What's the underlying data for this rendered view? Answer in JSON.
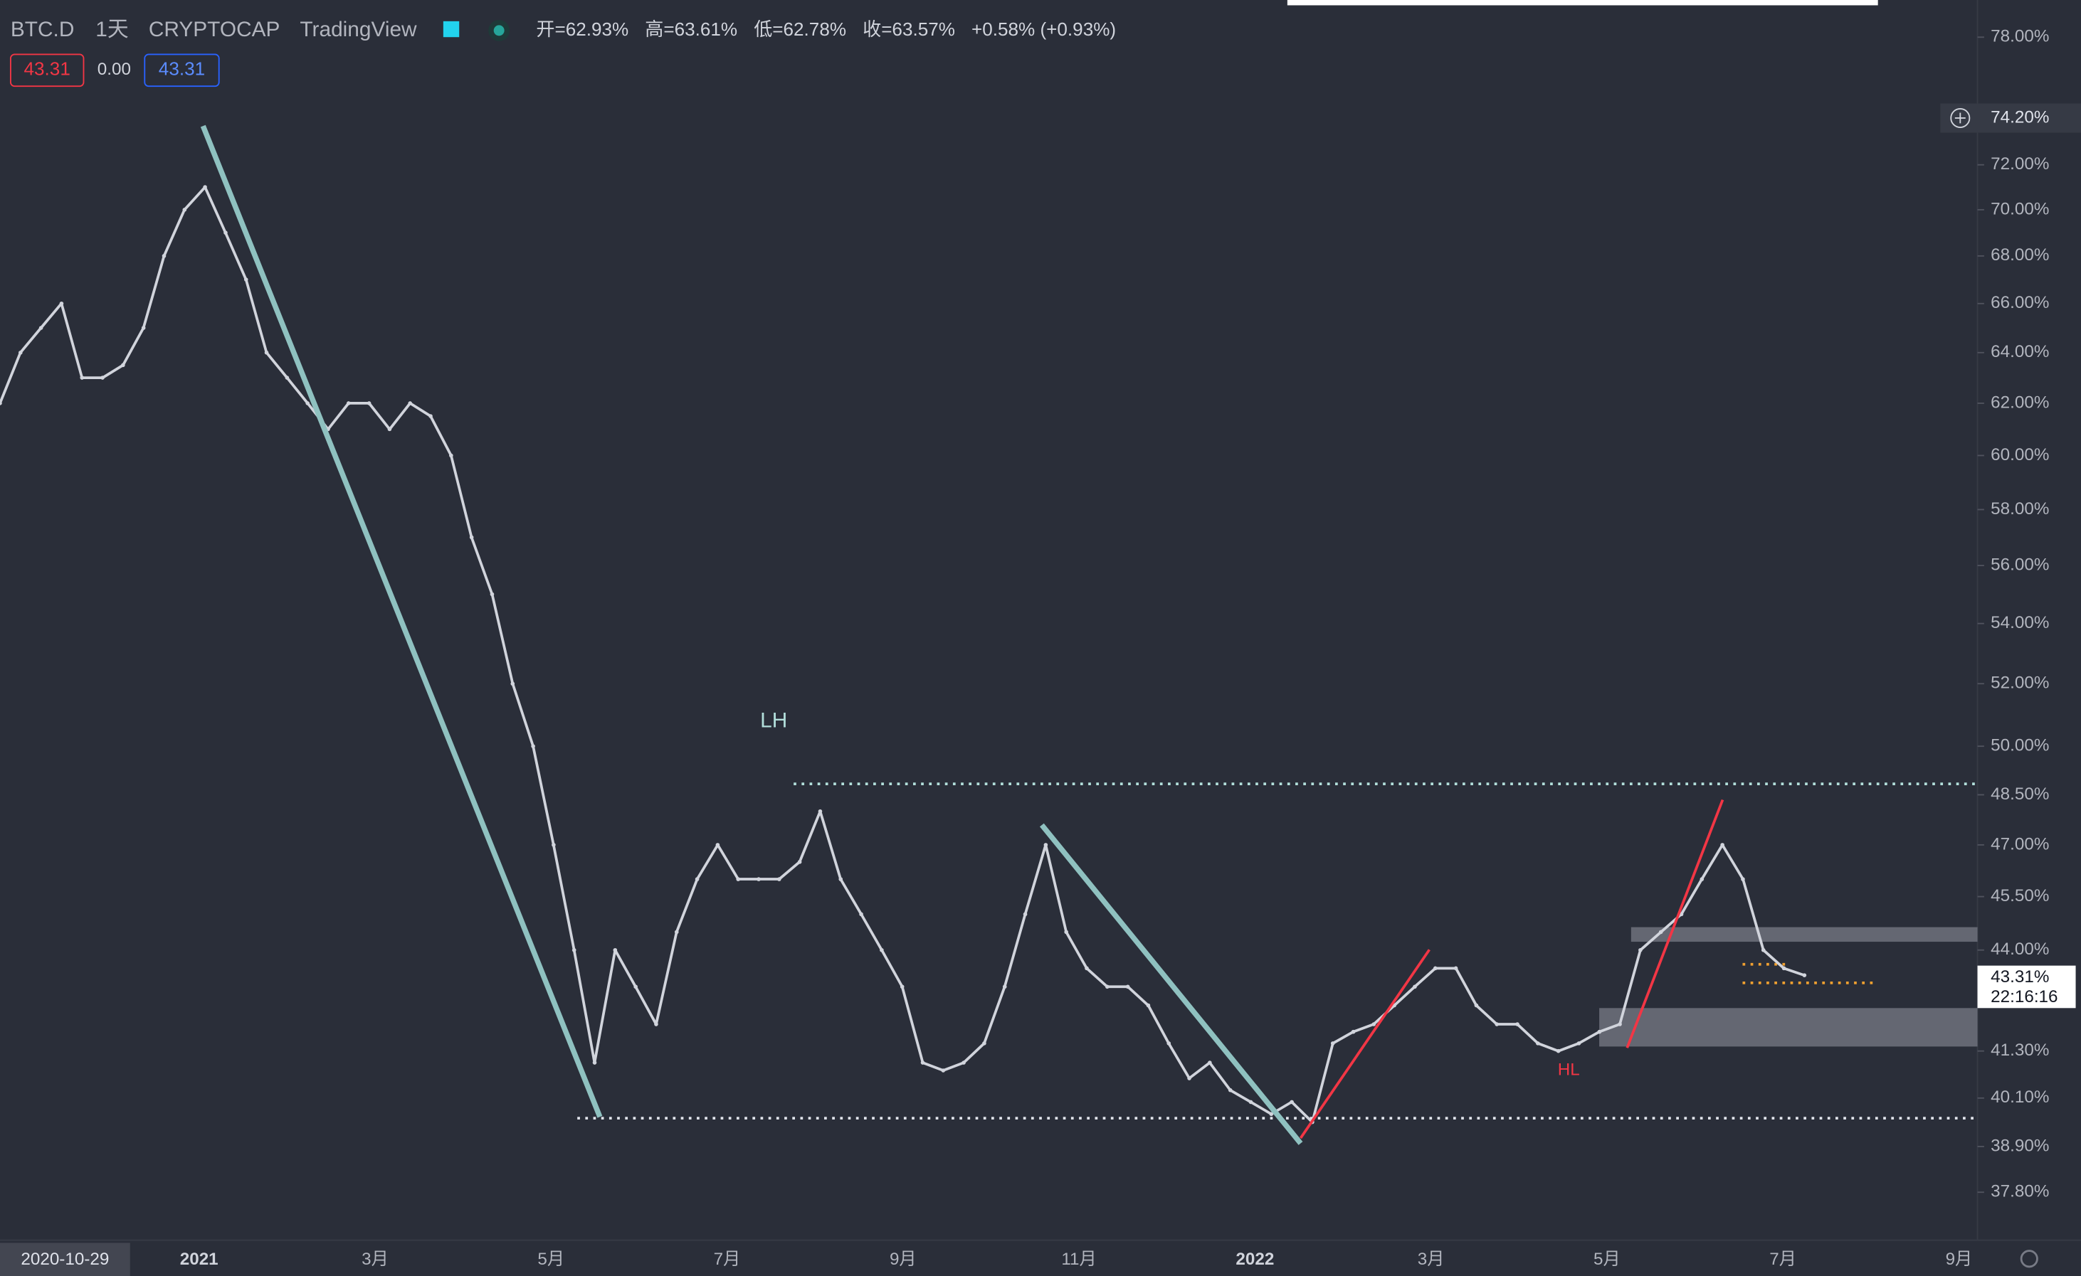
{
  "header": {
    "symbol": "BTC.D",
    "interval": "1天",
    "exchange": "CRYPTOCAP",
    "source": "TradingView",
    "ohlc": [
      "开=62.93%",
      "高=63.61%",
      "低=62.78%",
      "收=63.57%",
      "+0.58% (+0.93%)"
    ],
    "inputs": [
      "43.31",
      "0.00",
      "43.31"
    ]
  },
  "chart_data": {
    "type": "line",
    "color": "#d1d4dc",
    "log_scale": true,
    "ylim": [
      36.68,
      79.84
    ],
    "values": [
      62,
      64,
      65,
      66,
      63,
      63,
      63.5,
      65,
      68,
      70,
      71,
      69,
      67,
      64,
      63,
      62,
      61,
      62,
      62,
      61,
      62,
      61.5,
      60,
      57,
      55,
      52,
      50,
      47,
      44,
      41,
      44,
      43,
      42,
      44.5,
      46,
      47,
      46,
      46,
      46,
      46.5,
      48,
      46,
      45,
      44,
      43,
      41,
      40.8,
      41,
      41.5,
      43,
      45,
      47,
      44.5,
      43.5,
      43,
      43,
      42.5,
      41.5,
      40.6,
      41,
      40.3,
      40,
      39.7,
      40,
      39.5,
      41.5,
      41.8,
      42,
      42.5,
      43,
      43.5,
      43.5,
      42.5,
      42,
      42,
      41.5,
      41.3,
      41.5,
      41.8,
      42,
      44,
      44.5,
      45,
      46,
      47,
      46,
      44,
      43.5,
      43.31
    ],
    "yticks": [
      {
        "value": 78,
        "label": "78.00%"
      },
      {
        "value": 72,
        "label": "72.00%"
      },
      {
        "value": 70,
        "label": "70.00%"
      },
      {
        "value": 68,
        "label": "68.00%"
      },
      {
        "value": 66,
        "label": "66.00%"
      },
      {
        "value": 64,
        "label": "64.00%"
      },
      {
        "value": 62,
        "label": "62.00%"
      },
      {
        "value": 60,
        "label": "60.00%"
      },
      {
        "value": 58,
        "label": "58.00%"
      },
      {
        "value": 56,
        "label": "56.00%"
      },
      {
        "value": 54,
        "label": "54.00%"
      },
      {
        "value": 52,
        "label": "52.00%"
      },
      {
        "value": 50,
        "label": "50.00%"
      },
      {
        "value": 48.5,
        "label": "48.50%"
      },
      {
        "value": 47,
        "label": "47.00%"
      },
      {
        "value": 45.5,
        "label": "45.50%"
      },
      {
        "value": 44,
        "label": "44.00%"
      },
      {
        "value": 41.3,
        "label": "41.30%"
      },
      {
        "value": 40.1,
        "label": "40.10%"
      },
      {
        "value": 38.9,
        "label": "38.90%"
      },
      {
        "value": 37.8,
        "label": "37.80%"
      }
    ]
  },
  "time_axis": {
    "start": "2020-10-29",
    "labels": [
      "2021",
      "3月",
      "5月",
      "7月",
      "9月",
      "11月",
      "2022",
      "3月",
      "5月",
      "7月",
      "9月"
    ]
  },
  "crosshair_label": "74.20%",
  "last_price": {
    "label": "43.31%",
    "countdown": "22:16:16"
  },
  "annotations": {
    "lh": "LH",
    "hl": "HL"
  }
}
